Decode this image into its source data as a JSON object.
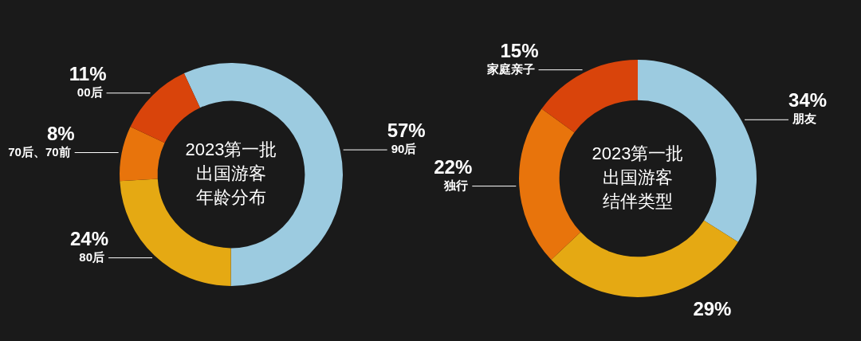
{
  "chart_data": [
    {
      "type": "donut",
      "title": "2023第一批出国游客年龄分布",
      "categories": [
        "90后",
        "80后",
        "70后、70前",
        "00后"
      ],
      "values": [
        57,
        24,
        8,
        11
      ],
      "value_labels": [
        "57%",
        "24%",
        "8%",
        "11%"
      ],
      "colors": [
        "#9ccbe0",
        "#e5a913",
        "#e8740c",
        "#d9440b"
      ],
      "legend": false
    },
    {
      "type": "donut",
      "title": "2023第一批出国游客结伴类型",
      "categories": [
        "朋友",
        null,
        "独行",
        "家庭亲子"
      ],
      "values": [
        34,
        29,
        22,
        15
      ],
      "value_labels": [
        "34%",
        "29%",
        "22%",
        "15%"
      ],
      "colors": [
        "#9ccbe0",
        "#e5a913",
        "#e8740c",
        "#d9440b"
      ],
      "legend": false
    }
  ]
}
